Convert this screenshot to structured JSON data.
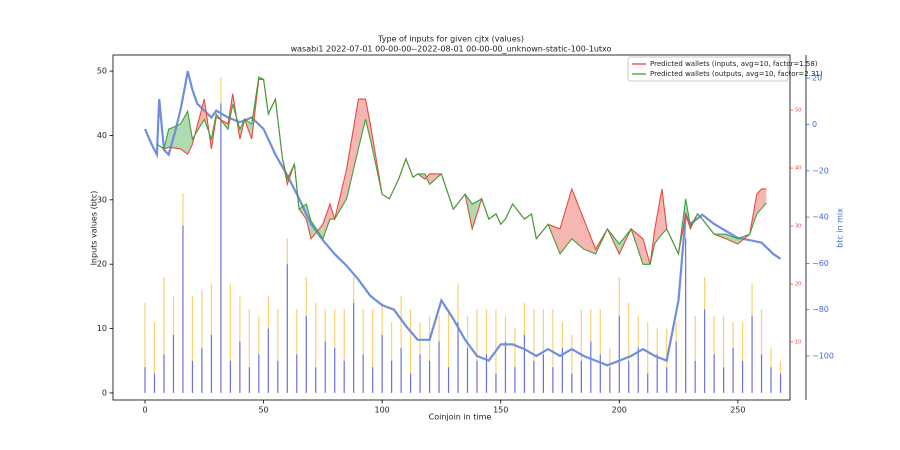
{
  "chart_data": {
    "type": "line",
    "title": "Type of inputs for given cjtx (values)",
    "subtitle": "wasabi1 2022-07-01 00-00-00--2022-08-01 00-00-00_unknown-static-100-1utxo",
    "xlabel": "Coinjoin in time",
    "ylabel": "Inputs values (btc)",
    "y2label": "btc in mix",
    "xlim": [
      -13.5,
      272
    ],
    "xticks": [
      0,
      50,
      100,
      150,
      200,
      250
    ],
    "ylim": [
      -1.1,
      52.5
    ],
    "yticks": [
      0,
      10,
      20,
      30,
      40,
      50
    ],
    "y2lim": [
      -119,
      30
    ],
    "y2ticks": [
      {
        "value": -100,
        "label": "−100"
      },
      {
        "value": -80,
        "label": "−80"
      },
      {
        "value": -60,
        "label": "−60"
      },
      {
        "value": -40,
        "label": "−40"
      },
      {
        "value": -20,
        "label": "−20"
      },
      0,
      20
    ],
    "y3lim": [
      0,
      59.5
    ],
    "y3ticks": [
      10,
      20,
      30,
      40,
      50
    ],
    "legend": "upper right",
    "series": [
      {
        "name": "Predicted wallets (inputs, avg=10, factor=1.58)",
        "color": "#e8483f",
        "axis": "y3",
        "x": [
          5,
          8,
          10,
          15,
          18,
          20,
          25,
          28,
          30,
          35,
          37,
          40,
          42,
          45,
          48,
          50,
          52,
          55,
          58,
          60,
          63,
          65,
          68,
          70,
          75,
          78,
          80,
          85,
          90,
          93,
          95,
          100,
          103,
          107,
          110,
          113,
          115,
          118,
          120,
          125,
          130,
          135,
          138,
          142,
          145,
          148,
          150,
          152,
          155,
          160,
          163,
          165,
          170,
          175,
          180,
          185,
          190,
          195,
          200,
          205,
          210,
          213,
          215,
          218,
          220,
          225,
          228,
          230,
          233,
          235,
          240,
          245,
          250,
          255,
          258,
          260,
          262
        ],
        "values": [
          44.1,
          43.3,
          43.6,
          43.3,
          42.4,
          44.1,
          51.9,
          43.3,
          48.8,
          47.6,
          52.8,
          45,
          48.4,
          45,
          55.3,
          55.3,
          49.3,
          51.9,
          41.6,
          37.2,
          40.7,
          32.9,
          31.2,
          27.8,
          30.3,
          33.8,
          31.2,
          39.8,
          51.9,
          51.9,
          47.6,
          35.5,
          34.7,
          38.1,
          41.6,
          38.4,
          39,
          38.1,
          39,
          39,
          32.9,
          35.5,
          29.5,
          34.7,
          31.2,
          32.1,
          30.3,
          31.2,
          33.8,
          31.2,
          32.1,
          27.8,
          30.3,
          29.5,
          36.4,
          31.2,
          26,
          29.5,
          25.2,
          29.5,
          27.8,
          23.4,
          29.5,
          36.4,
          29.5,
          25.2,
          32.1,
          29.5,
          32.1,
          31.2,
          28.6,
          27.8,
          26.9,
          28.6,
          35.5,
          36.4,
          36.4
        ]
      },
      {
        "name": "Predicted wallets (outputs, avg=10, factor=2.31)",
        "color": "#3aa33a",
        "axis": "y3",
        "x": [
          5,
          8,
          10,
          15,
          18,
          20,
          25,
          28,
          30,
          35,
          37,
          40,
          42,
          45,
          48,
          50,
          52,
          55,
          58,
          60,
          63,
          65,
          68,
          70,
          75,
          78,
          80,
          85,
          90,
          93,
          95,
          100,
          103,
          107,
          110,
          113,
          115,
          118,
          120,
          125,
          130,
          135,
          138,
          142,
          145,
          148,
          150,
          152,
          155,
          160,
          163,
          165,
          170,
          175,
          180,
          185,
          190,
          195,
          200,
          205,
          210,
          213,
          215,
          218,
          220,
          225,
          228,
          230,
          233,
          235,
          240,
          245,
          250,
          255,
          258,
          260,
          262
        ],
        "values": [
          44.1,
          43.3,
          46.7,
          47.6,
          49.8,
          45,
          48.4,
          45,
          49.3,
          46.7,
          51,
          46.7,
          48.4,
          47.6,
          55.7,
          55.3,
          49.3,
          51.9,
          41.6,
          38.1,
          40.7,
          32.9,
          33.8,
          30.9,
          27.8,
          31.2,
          31.2,
          34.7,
          43.3,
          48.4,
          45,
          35.5,
          34.7,
          38.1,
          41.6,
          38.4,
          39,
          39,
          37.2,
          39,
          32.9,
          35.5,
          33.8,
          34.7,
          31.2,
          32.1,
          30.3,
          31.2,
          33.8,
          31.2,
          32.1,
          27.8,
          30.3,
          25.2,
          27.8,
          26,
          25.2,
          29.5,
          26.9,
          29.5,
          23.4,
          23.4,
          27,
          28.6,
          29.5,
          25.2,
          34.7,
          30,
          32.1,
          31.2,
          28.6,
          28.6,
          27.8,
          28.6,
          32.1,
          33,
          34
        ]
      }
    ],
    "mix_line": {
      "color": "#6f8ee0",
      "axis": "y2",
      "x": [
        0,
        3,
        5,
        6,
        8,
        10,
        13,
        15,
        17,
        18,
        20,
        22,
        25,
        28,
        30,
        35,
        40,
        45,
        50,
        55,
        60,
        65,
        70,
        75,
        80,
        85,
        90,
        95,
        100,
        105,
        110,
        115,
        120,
        125,
        130,
        135,
        140,
        145,
        150,
        155,
        160,
        165,
        170,
        175,
        180,
        185,
        190,
        195,
        200,
        205,
        210,
        215,
        220,
        225,
        228,
        230,
        235,
        240,
        245,
        250,
        255,
        260,
        265,
        268
      ],
      "values": [
        -2,
        -9,
        -13,
        11,
        -11,
        -13,
        -2,
        6.5,
        17,
        23,
        15,
        9,
        6,
        3,
        6,
        3,
        1,
        3,
        -2,
        -13,
        -22,
        -32,
        -43,
        -50,
        -56,
        -61,
        -67,
        -74,
        -78,
        -80,
        -87,
        -93,
        -93,
        -76,
        -84,
        -93,
        -100,
        -102,
        -95,
        -95,
        -97,
        -100,
        -97,
        -100,
        -97,
        -100,
        -102,
        -104,
        -102,
        -100,
        -97,
        -100,
        -102,
        -76,
        -39,
        -43,
        -39,
        -43,
        -46,
        -49,
        -50,
        -51,
        -56,
        -58
      ]
    },
    "bars": {
      "x": [
        0,
        4,
        8,
        12,
        16,
        20,
        24,
        28,
        32,
        36,
        40,
        44,
        48,
        52,
        56,
        60,
        64,
        68,
        72,
        76,
        80,
        84,
        88,
        92,
        96,
        100,
        104,
        108,
        112,
        116,
        120,
        124,
        128,
        132,
        136,
        140,
        144,
        148,
        152,
        156,
        160,
        164,
        168,
        172,
        176,
        180,
        184,
        188,
        192,
        196,
        200,
        204,
        208,
        212,
        216,
        220,
        224,
        228,
        232,
        236,
        240,
        244,
        248,
        252,
        256,
        260,
        264,
        268
      ],
      "series": [
        {
          "color": "#3a3fd0",
          "values": [
            4,
            3,
            6,
            9,
            26,
            5,
            7,
            9,
            45,
            5,
            8,
            4,
            6,
            10,
            5,
            20,
            6,
            12,
            4,
            8,
            7,
            5,
            14,
            6,
            4,
            9,
            5,
            7,
            3,
            6,
            5,
            8,
            4,
            11,
            7,
            5,
            6,
            3,
            8,
            4,
            9,
            5,
            6,
            4,
            7,
            3,
            5,
            8,
            6,
            4,
            12,
            5,
            7,
            3,
            6,
            4,
            8,
            24,
            5,
            13,
            6,
            4,
            7,
            5,
            12,
            6,
            4,
            3
          ]
        },
        {
          "color": "#f5c242",
          "values": [
            10,
            8,
            12,
            6,
            5,
            10,
            9,
            8,
            4,
            12,
            7,
            9,
            6,
            5,
            8,
            4,
            7,
            6,
            10,
            5,
            6,
            8,
            4,
            7,
            9,
            5,
            6,
            8,
            10,
            5,
            7,
            4,
            9,
            6,
            5,
            8,
            7,
            10,
            4,
            6,
            5,
            8,
            7,
            9,
            4,
            6,
            8,
            5,
            7,
            3,
            6,
            9,
            5,
            8,
            4,
            6,
            3,
            4,
            7,
            5,
            6,
            8,
            4,
            6,
            5,
            7,
            3,
            2
          ]
        }
      ]
    }
  }
}
